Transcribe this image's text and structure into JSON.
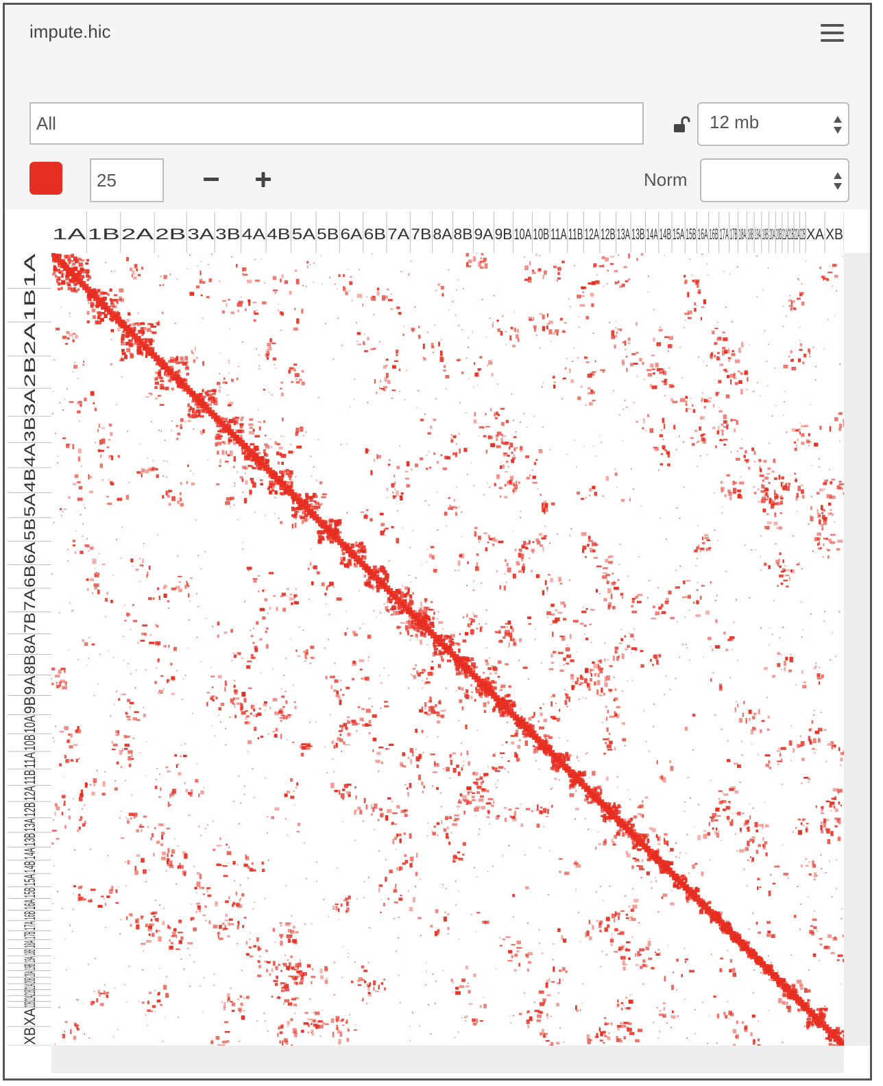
{
  "app": {
    "title": "impute.hic"
  },
  "locus": {
    "value": "All"
  },
  "resolution": {
    "selected": "12 mb"
  },
  "color": {
    "swatch": "#e52f22",
    "threshold": "25"
  },
  "norm": {
    "label": "Norm",
    "selected": ""
  },
  "chromosomes": [
    "1A",
    "1B",
    "2A",
    "2B",
    "3A",
    "3B",
    "4A",
    "4B",
    "5A",
    "5B",
    "6A",
    "6B",
    "7A",
    "7B",
    "8A",
    "8B",
    "9A",
    "9B",
    "10A",
    "10B",
    "11A",
    "11B",
    "12A",
    "12B",
    "13A",
    "13B",
    "14A",
    "14B",
    "15A",
    "15B",
    "16A",
    "16B",
    "17A",
    "17B",
    "18A",
    "18B",
    "19A",
    "19B",
    "20A",
    "20B",
    "21A",
    "21B",
    "22A",
    "22B",
    "XA",
    "XB"
  ],
  "icons": {
    "menu": "hamburger-menu-icon",
    "lock": "unlock-icon",
    "minus": "minus-icon",
    "plus": "plus-icon"
  }
}
